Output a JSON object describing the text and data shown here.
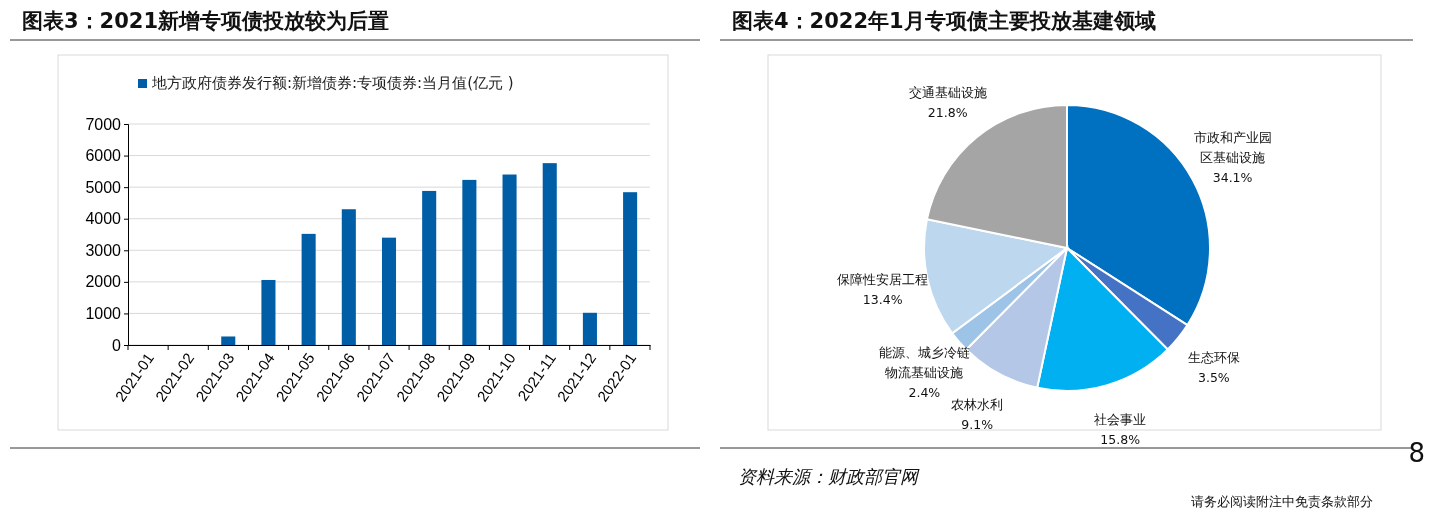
{
  "chart_data": [
    {
      "type": "bar",
      "title": "图表3：2021新增专项债投放较为后置",
      "categories": [
        "2021-01",
        "2021-02",
        "2021-03",
        "2021-04",
        "2021-05",
        "2021-06",
        "2021-07",
        "2021-08",
        "2021-09",
        "2021-10",
        "2021-11",
        "2021-12",
        "2022-01"
      ],
      "series": [
        {
          "name": "地方政府债券发行额:新增债券:专项债券:当月值(亿元 )",
          "color": "#005ea6",
          "values": [
            0,
            0,
            270,
            2060,
            3520,
            4300,
            3400,
            4880,
            5230,
            5400,
            5760,
            1020,
            4840
          ]
        }
      ],
      "ylim": [
        0,
        7000
      ],
      "yticks": [
        0,
        1000,
        2000,
        3000,
        4000,
        5000,
        6000,
        7000
      ],
      "grid": "y",
      "legend": "top"
    },
    {
      "type": "pie",
      "title": "图表4：2022年1月专项债主要投放基建领域",
      "categories": [
        "市政和产业园区基础设施",
        "生态环保",
        "社会事业",
        "农林水利",
        "能源、城乡冷链物流基础设施",
        "保障性安居工程",
        "交通基础设施"
      ],
      "values": [
        34.1,
        3.5,
        15.8,
        9.1,
        2.4,
        13.4,
        21.8
      ],
      "colors": [
        "#0070c0",
        "#4472c4",
        "#00b0f0",
        "#b4c7e7",
        "#9dc3e6",
        "#bdd7ee",
        "#a5a5a5"
      ],
      "value_labels": [
        "34.1%",
        "3.5%",
        "15.8%",
        "9.1%",
        "2.4%",
        "13.4%",
        "21.8%"
      ],
      "annotations": [
        "资料来源：财政部官网",
        "8",
        "请务必阅读附注中免责条款部分"
      ]
    }
  ]
}
